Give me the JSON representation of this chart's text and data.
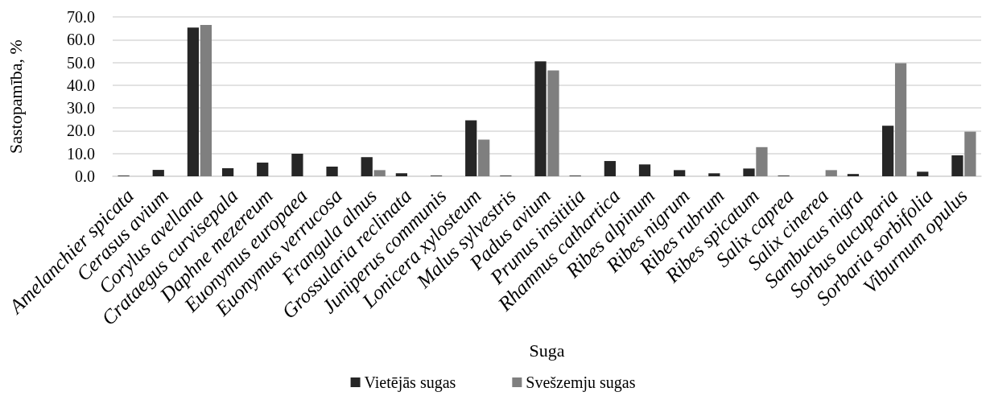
{
  "chart_data": {
    "type": "bar",
    "categories": [
      "Amelanchier spicata",
      "Cerasus avium",
      "Corylus avellana",
      "Crataegus curvisepala",
      "Daphne mezereum",
      "Euonymus europaea",
      "Euonymus verrucosa",
      "Frangula alnus",
      "Grossularia reclinata",
      "Juniperus communis",
      "Lonicera xylosteum",
      "Malus sylvestris",
      "Padus avium",
      "Prunus insititia",
      "Rhamnus cathartica",
      "Ribes alpinum",
      "Ribes nigrum",
      "Ribes rubrum",
      "Ribes spicatum",
      "Salix caprea",
      "Salix cinerea",
      "Sambucus nigra",
      "Sorbus aucuparia",
      "Sorbaria sorbifolia",
      "Viburnum opulus"
    ],
    "series": [
      {
        "name": "Vietējās sugas",
        "color": "#262626",
        "values": [
          0.3,
          2.8,
          65.3,
          3.5,
          6.0,
          9.9,
          4.2,
          8.4,
          1.3,
          0.3,
          24.6,
          0.3,
          50.5,
          0.3,
          6.7,
          5.2,
          2.7,
          1.3,
          3.4,
          0.3,
          0,
          1.0,
          22.2,
          2.0,
          9.2
        ]
      },
      {
        "name": "Svešzemju sugas",
        "color": "#7f7f7f",
        "values": [
          0,
          0,
          66.5,
          0,
          0,
          0,
          0,
          2.7,
          0,
          0,
          16.1,
          0,
          46.5,
          0,
          0,
          0,
          0,
          0,
          12.8,
          0,
          2.7,
          0,
          49.7,
          0,
          19.6
        ]
      }
    ],
    "xlabel": "Suga",
    "ylabel": "Sastopamība, %",
    "ylim": [
      0,
      70
    ],
    "yticks": [
      {
        "value": 0,
        "label": "0.0"
      },
      {
        "value": 10,
        "label": "10.0"
      },
      {
        "value": 20,
        "label": "20.0"
      },
      {
        "value": 30,
        "label": "30.0"
      },
      {
        "value": 40,
        "label": "40.0"
      },
      {
        "value": 50,
        "label": "50.0"
      },
      {
        "value": 60,
        "label": "60.0"
      },
      {
        "value": 70,
        "label": "70.0"
      }
    ],
    "grid": "y",
    "legend": "bottom"
  }
}
